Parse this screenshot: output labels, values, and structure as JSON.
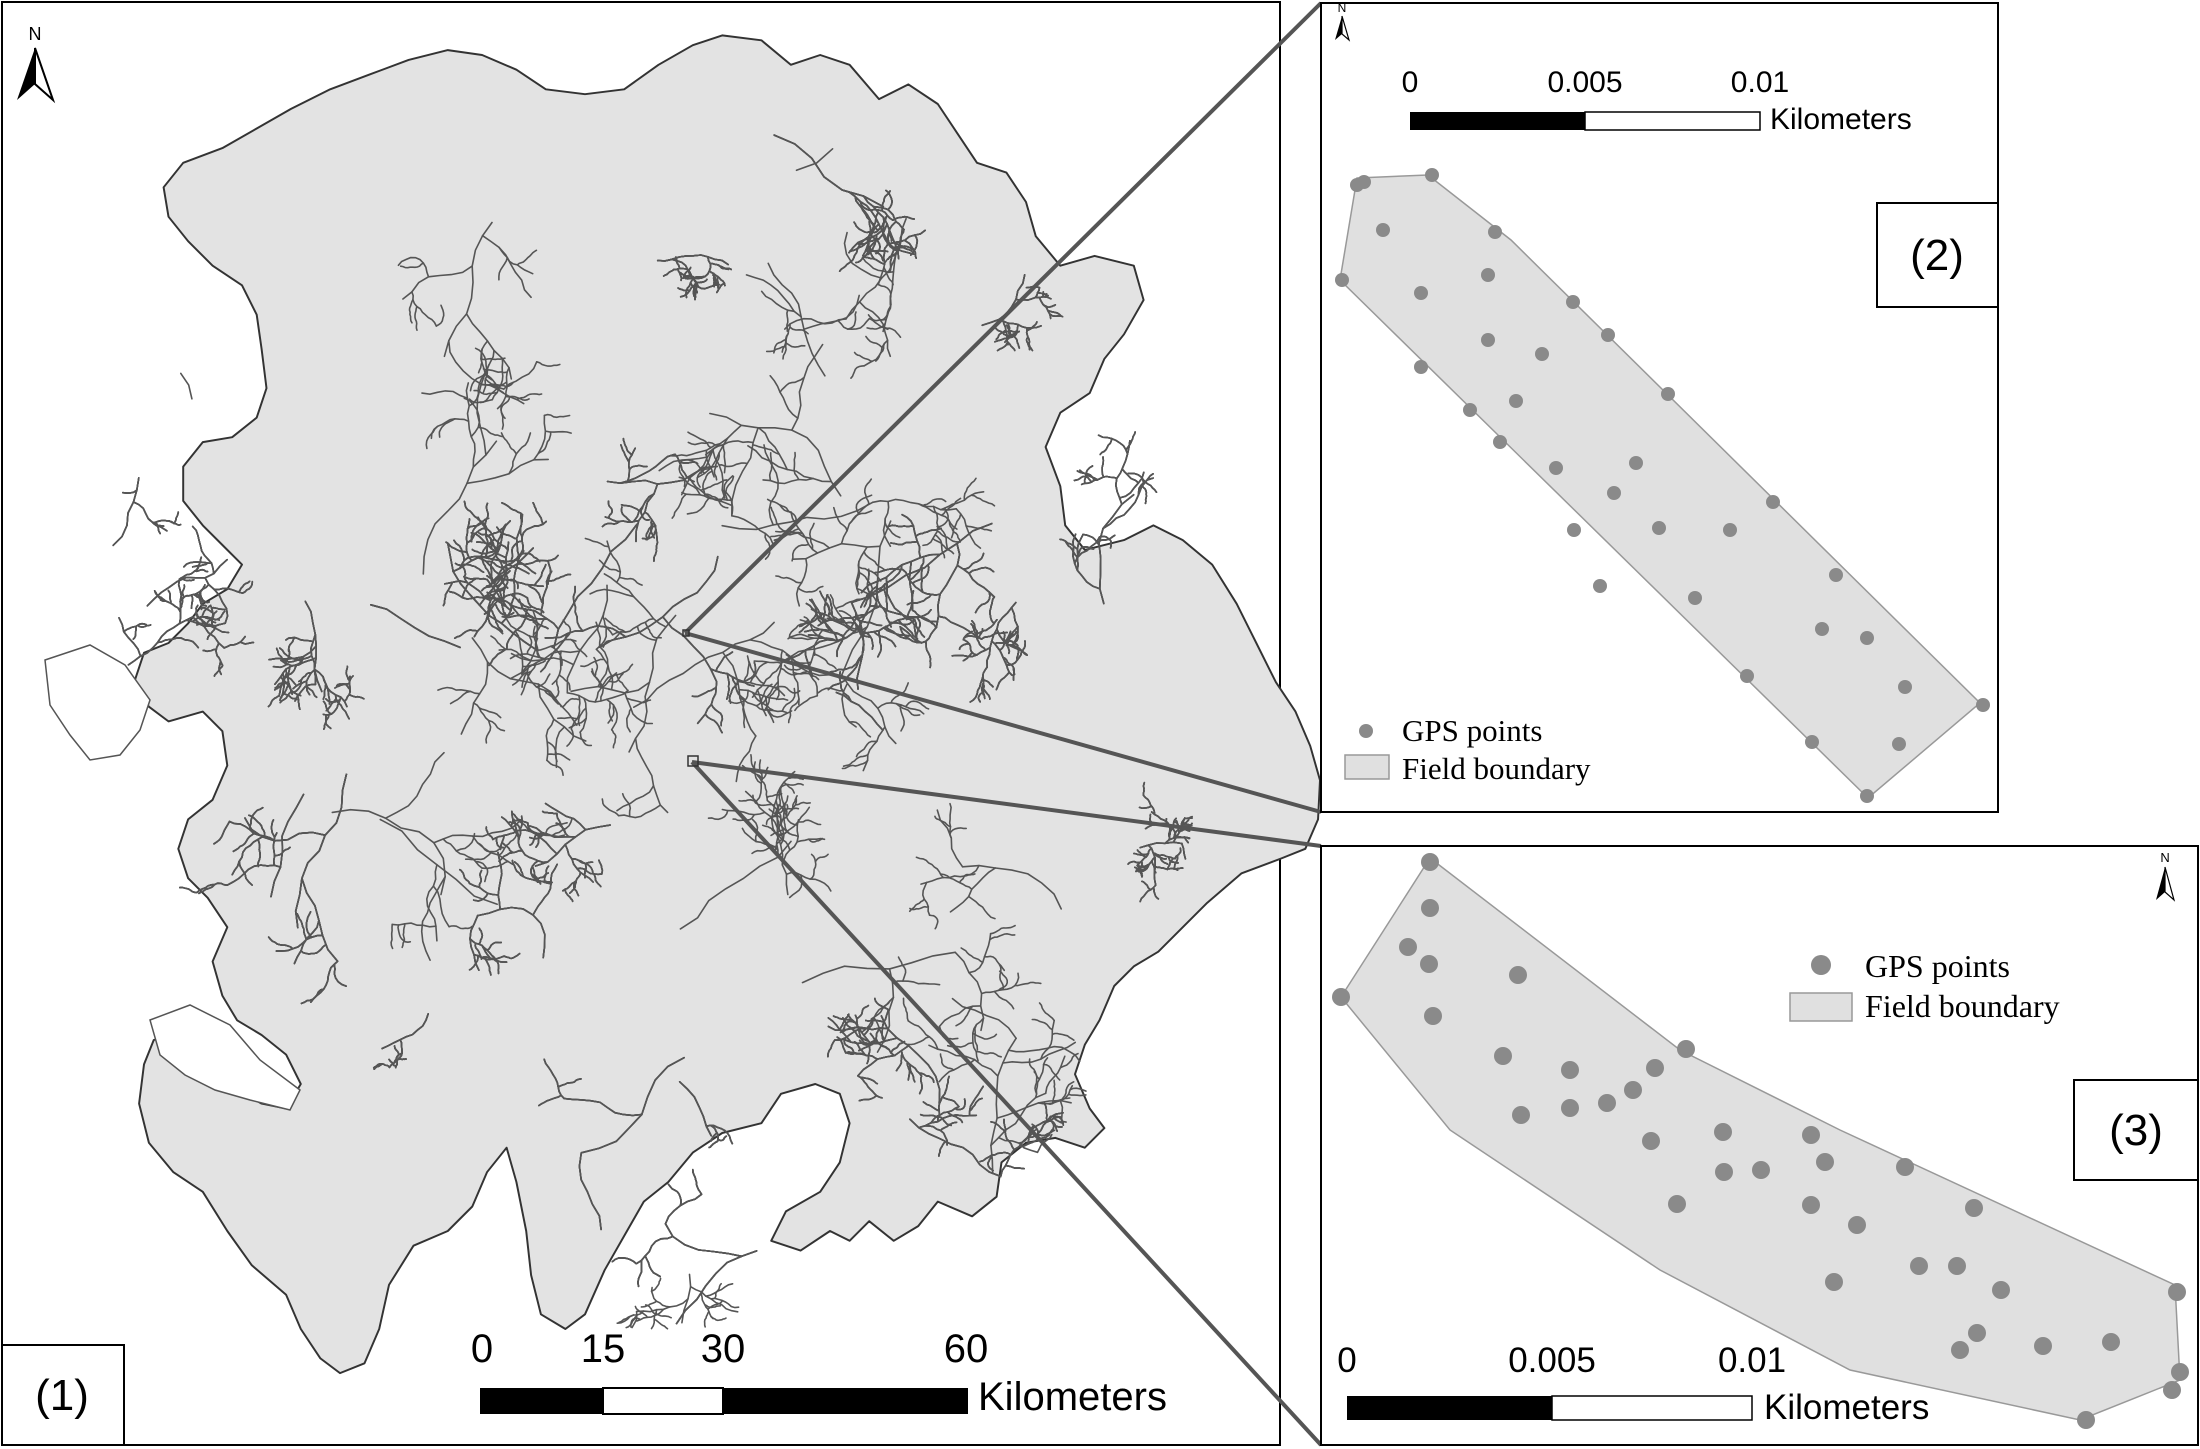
{
  "panel1": {
    "label": "(1)",
    "north": "N",
    "scale": {
      "ticks": [
        "0",
        "15",
        "30",
        "60"
      ],
      "unit": "Kilometers"
    }
  },
  "panel2": {
    "label": "(2)",
    "north": "N",
    "scale": {
      "ticks": [
        "0",
        "0.005",
        "0.01"
      ],
      "unit": "Kilometers"
    },
    "legend": {
      "points": "GPS points",
      "boundary": "Field boundary"
    }
  },
  "panel3": {
    "label": "(3)",
    "north": "N",
    "scale": {
      "ticks": [
        "0",
        "0.005",
        "0.01"
      ],
      "unit": "Kilometers"
    },
    "legend": {
      "points": "GPS points",
      "boundary": "Field boundary"
    }
  },
  "colors": {
    "land_fill": "#e3e3e3",
    "river": "#555555",
    "frame": "#000000",
    "gps_point": "#8a8a8a",
    "field_fill": "#e0e0e0",
    "leader_line": "#555555"
  }
}
